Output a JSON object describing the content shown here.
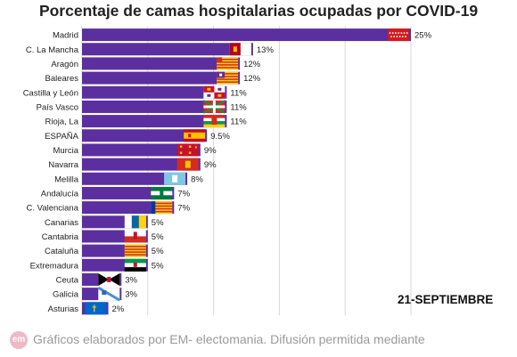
{
  "chart_data": {
    "type": "bar",
    "orientation": "horizontal",
    "title": "Porcentaje de camas hospitalarias ocupadas por COVID-19",
    "categories": [
      "Madrid",
      "C. La Mancha",
      "Aragón",
      "Baleares",
      "Castilla y León",
      "País Vasco",
      "Rioja, La",
      "ESPAÑA",
      "Murcia",
      "Navarra",
      "Melilla",
      "Andalucía",
      "C. Valenciana",
      "Canarias",
      "Cantabria",
      "Cataluña",
      "Extremadura",
      "Ceuta",
      "Galicia",
      "Asturias"
    ],
    "values": [
      25,
      13,
      12,
      12,
      11,
      11,
      11,
      9.5,
      9,
      9,
      8,
      7,
      7,
      5,
      5,
      5,
      5,
      3,
      3,
      2
    ],
    "value_labels": [
      "25%",
      "13%",
      "12%",
      "12%",
      "11%",
      "11%",
      "11%",
      "9.5%",
      "9%",
      "9%",
      "8%",
      "7%",
      "7%",
      "5%",
      "5%",
      "5%",
      "5%",
      "3%",
      "3%",
      "2%"
    ],
    "flag_icons": [
      "madrid-flag-icon",
      "castilla-la-mancha-flag-icon",
      "aragon-flag-icon",
      "baleares-flag-icon",
      "castilla-y-leon-flag-icon",
      "pais-vasco-flag-icon",
      "la-rioja-flag-icon",
      "spain-flag-icon",
      "murcia-flag-icon",
      "navarra-flag-icon",
      "melilla-flag-icon",
      "andalucia-flag-icon",
      "valencia-flag-icon",
      "canarias-flag-icon",
      "cantabria-flag-icon",
      "cataluna-flag-icon",
      "extremadura-flag-icon",
      "ceuta-flag-icon",
      "galicia-flag-icon",
      "asturias-flag-icon"
    ],
    "xlim": [
      0,
      25
    ],
    "grid": true,
    "colors": {
      "bar": "#5c2fa0",
      "grid": "#d8d8d8"
    }
  },
  "date_label": "21-SEPTIEMBRE",
  "footer": {
    "logo_text": "em",
    "text": "Gráficos elaborados por EM- electomania. Difusión permitida mediante"
  }
}
